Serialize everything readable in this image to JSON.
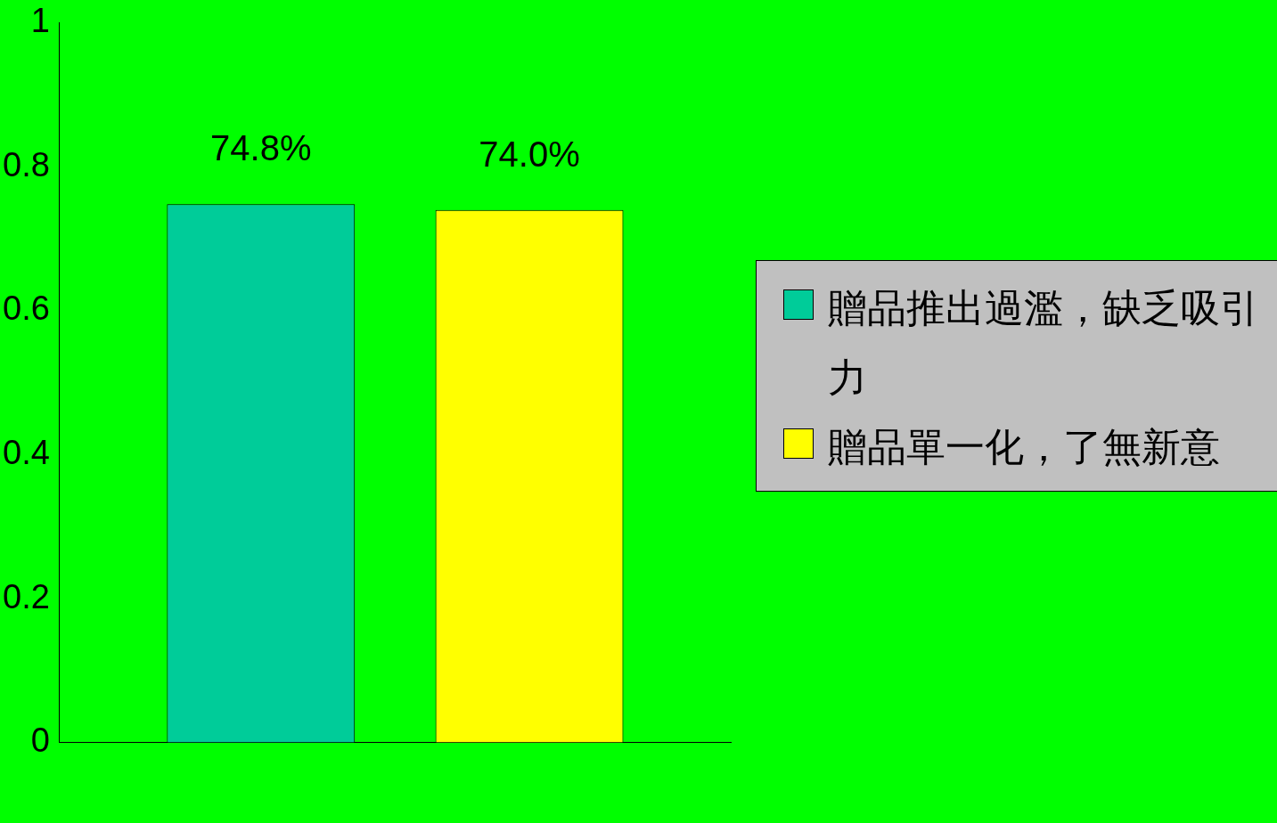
{
  "chart_data": {
    "type": "bar",
    "categories": [
      null
    ],
    "series": [
      {
        "name": "贈品推出過濫，缺乏吸引力",
        "color": "#00cc99",
        "values": [
          0.748
        ],
        "value_labels": [
          "74.8%"
        ]
      },
      {
        "name": "贈品單一化，了無新意",
        "color": "#ffff00",
        "values": [
          0.74
        ],
        "value_labels": [
          "74.0%"
        ]
      }
    ],
    "ylim": [
      0,
      1
    ],
    "yticks": [
      0,
      0.2,
      0.4,
      0.6,
      0.8,
      1
    ],
    "grid": false,
    "legend": "right"
  }
}
